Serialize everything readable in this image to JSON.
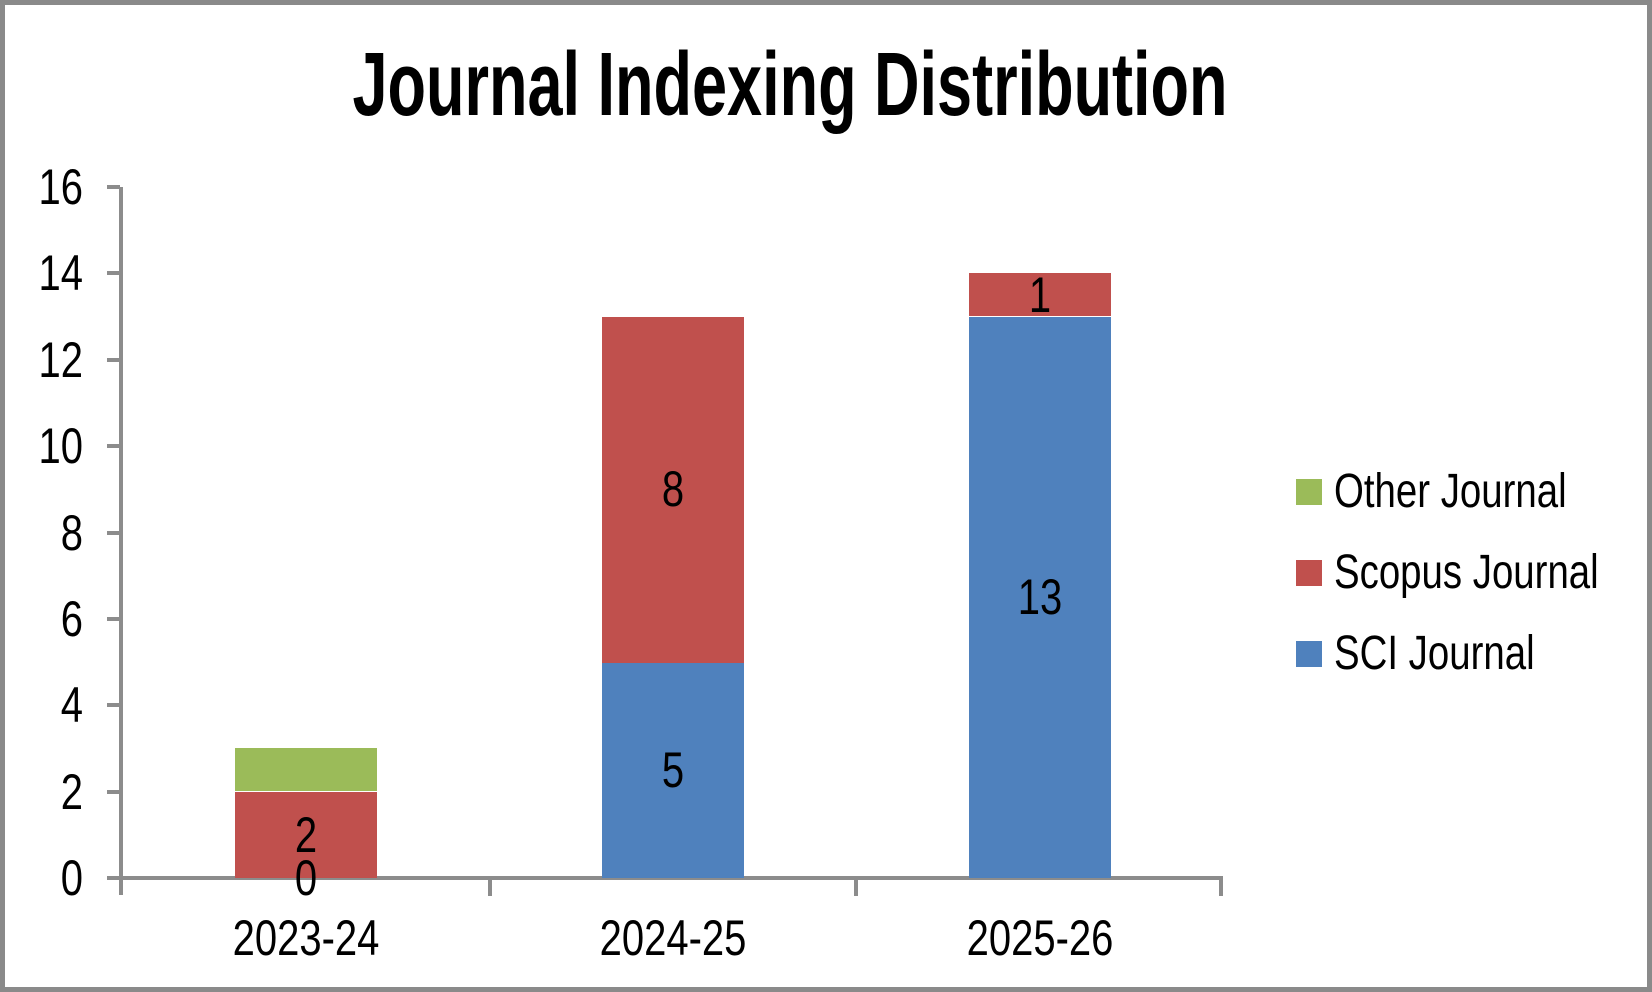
{
  "frame": {
    "background": "#FFFFFF",
    "border_color": "#8A8A8A"
  },
  "chart_data": {
    "type": "bar",
    "stacked": true,
    "title": "Journal Indexing Distribution",
    "categories": [
      "2023-24",
      "2024-25",
      "2025-26"
    ],
    "series": [
      {
        "name": "SCI Journal",
        "color": "#4F81BD",
        "values": [
          0,
          5,
          13
        ],
        "data_labels": [
          "0",
          "5",
          "13"
        ]
      },
      {
        "name": "Scopus Journal",
        "color": "#C0504D",
        "values": [
          2,
          8,
          1
        ],
        "data_labels": [
          "2",
          "8",
          "1"
        ]
      },
      {
        "name": "Other Journal",
        "color": "#9BBB59",
        "values": [
          1,
          0,
          0
        ],
        "data_labels": [
          null,
          null,
          null
        ]
      }
    ],
    "stack_order_bottom_to_top": [
      "SCI Journal",
      "Scopus Journal",
      "Other Journal"
    ],
    "y_axis": {
      "min": 0,
      "max": 16,
      "tick_step": 2,
      "ticks": [
        0,
        2,
        4,
        6,
        8,
        10,
        12,
        14,
        16
      ]
    },
    "x_axis": {
      "labels": [
        "2023-24",
        "2024-25",
        "2025-26"
      ]
    },
    "legend": {
      "position": "right",
      "order_top_to_bottom": [
        "Other Journal",
        "Scopus Journal",
        "SCI Journal"
      ]
    },
    "gridlines": false,
    "axis_color": "#8C8C8C",
    "text_color": "#000000"
  }
}
